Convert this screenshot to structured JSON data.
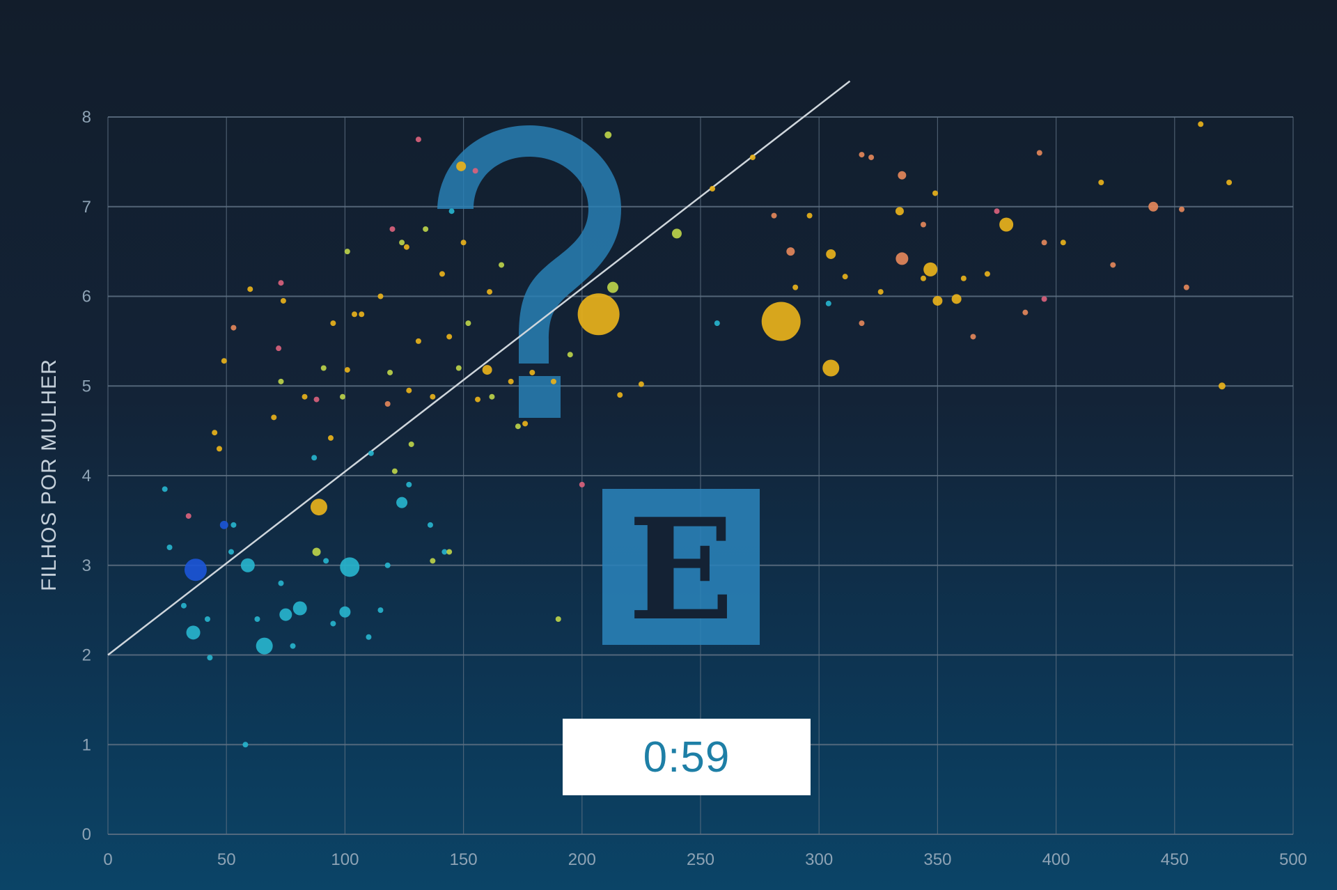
{
  "timer": {
    "value": "0:59"
  },
  "colors": {
    "grid": "#5f7183",
    "trend_line": "#cfd6dc",
    "logo_blue": "#2a82b8",
    "yellow": "#e8b21b",
    "orange": "#e3875a",
    "pink": "#d9627c",
    "teal": "#27b3cc",
    "blue": "#1b55d6",
    "lime": "#bcd24a"
  },
  "logo": {
    "glyphs": "?E",
    "icon": "question-mark-e-logo"
  },
  "chart_data": {
    "type": "scatter",
    "title": "",
    "xlabel": "",
    "ylabel": "FILHOS POR MULHER",
    "xlim": [
      0,
      500
    ],
    "ylim": [
      0,
      8
    ],
    "x_ticks": [
      "0",
      "50",
      "100",
      "150",
      "200",
      "250",
      "300",
      "350",
      "400",
      "450",
      "500"
    ],
    "y_ticks": [
      "0",
      "1",
      "2",
      "3",
      "4",
      "5",
      "6",
      "7",
      "8"
    ],
    "grid": true,
    "trend_line": {
      "x": [
        0,
        313
      ],
      "y": [
        2.0,
        8.4
      ]
    },
    "points": [
      {
        "x": 37,
        "y": 2.95,
        "r": 16,
        "c": "blue"
      },
      {
        "x": 49,
        "y": 3.45,
        "r": 6,
        "c": "blue"
      },
      {
        "x": 59,
        "y": 3.0,
        "r": 10,
        "c": "teal"
      },
      {
        "x": 66,
        "y": 2.1,
        "r": 12,
        "c": "teal"
      },
      {
        "x": 36,
        "y": 2.25,
        "r": 10,
        "c": "teal"
      },
      {
        "x": 75,
        "y": 2.45,
        "r": 9,
        "c": "teal"
      },
      {
        "x": 81,
        "y": 2.52,
        "r": 10,
        "c": "teal"
      },
      {
        "x": 102,
        "y": 2.98,
        "r": 14,
        "c": "teal"
      },
      {
        "x": 100,
        "y": 2.48,
        "r": 8,
        "c": "teal"
      },
      {
        "x": 124,
        "y": 3.7,
        "r": 8,
        "c": "teal"
      },
      {
        "x": 88,
        "y": 3.15,
        "r": 6,
        "c": "lime"
      },
      {
        "x": 24,
        "y": 3.85,
        "r": 4,
        "c": "teal"
      },
      {
        "x": 26,
        "y": 3.2,
        "r": 4,
        "c": "teal"
      },
      {
        "x": 32,
        "y": 2.55,
        "r": 4,
        "c": "teal"
      },
      {
        "x": 42,
        "y": 2.4,
        "r": 4,
        "c": "teal"
      },
      {
        "x": 43,
        "y": 1.97,
        "r": 4,
        "c": "teal"
      },
      {
        "x": 52,
        "y": 3.15,
        "r": 4,
        "c": "teal"
      },
      {
        "x": 53,
        "y": 3.45,
        "r": 4,
        "c": "teal"
      },
      {
        "x": 58,
        "y": 1.0,
        "r": 4,
        "c": "teal"
      },
      {
        "x": 63,
        "y": 2.4,
        "r": 4,
        "c": "teal"
      },
      {
        "x": 73,
        "y": 2.8,
        "r": 4,
        "c": "teal"
      },
      {
        "x": 78,
        "y": 2.1,
        "r": 4,
        "c": "teal"
      },
      {
        "x": 92,
        "y": 3.05,
        "r": 4,
        "c": "teal"
      },
      {
        "x": 95,
        "y": 2.35,
        "r": 4,
        "c": "teal"
      },
      {
        "x": 110,
        "y": 2.2,
        "r": 4,
        "c": "teal"
      },
      {
        "x": 115,
        "y": 2.5,
        "r": 4,
        "c": "teal"
      },
      {
        "x": 118,
        "y": 3.0,
        "r": 4,
        "c": "teal"
      },
      {
        "x": 127,
        "y": 3.9,
        "r": 4,
        "c": "teal"
      },
      {
        "x": 136,
        "y": 3.45,
        "r": 4,
        "c": "teal"
      },
      {
        "x": 142,
        "y": 3.15,
        "r": 4,
        "c": "teal"
      },
      {
        "x": 111,
        "y": 4.25,
        "r": 4,
        "c": "teal"
      },
      {
        "x": 87,
        "y": 4.2,
        "r": 4,
        "c": "teal"
      },
      {
        "x": 145,
        "y": 6.95,
        "r": 4,
        "c": "teal"
      },
      {
        "x": 137,
        "y": 3.05,
        "r": 4,
        "c": "lime"
      },
      {
        "x": 144,
        "y": 3.15,
        "r": 4,
        "c": "lime"
      },
      {
        "x": 190,
        "y": 2.4,
        "r": 4,
        "c": "lime"
      },
      {
        "x": 89,
        "y": 3.65,
        "r": 12,
        "c": "yellow"
      },
      {
        "x": 207,
        "y": 5.8,
        "r": 30,
        "c": "yellow"
      },
      {
        "x": 284,
        "y": 5.72,
        "r": 28,
        "c": "yellow"
      },
      {
        "x": 305,
        "y": 5.2,
        "r": 12,
        "c": "yellow"
      },
      {
        "x": 160,
        "y": 5.18,
        "r": 7,
        "c": "yellow"
      },
      {
        "x": 149,
        "y": 7.45,
        "r": 7,
        "c": "yellow"
      },
      {
        "x": 347,
        "y": 6.3,
        "r": 10,
        "c": "yellow"
      },
      {
        "x": 379,
        "y": 6.8,
        "r": 10,
        "c": "yellow"
      },
      {
        "x": 350,
        "y": 5.95,
        "r": 7,
        "c": "yellow"
      },
      {
        "x": 358,
        "y": 5.97,
        "r": 7,
        "c": "yellow"
      },
      {
        "x": 305,
        "y": 6.47,
        "r": 7,
        "c": "yellow"
      },
      {
        "x": 334,
        "y": 6.95,
        "r": 6,
        "c": "yellow"
      },
      {
        "x": 470,
        "y": 5.0,
        "r": 5,
        "c": "yellow"
      },
      {
        "x": 461,
        "y": 7.92,
        "r": 4,
        "c": "yellow"
      },
      {
        "x": 473,
        "y": 7.27,
        "r": 4,
        "c": "yellow"
      },
      {
        "x": 419,
        "y": 7.27,
        "r": 4,
        "c": "yellow"
      },
      {
        "x": 335,
        "y": 6.42,
        "r": 9,
        "c": "orange"
      },
      {
        "x": 335,
        "y": 7.35,
        "r": 6,
        "c": "orange"
      },
      {
        "x": 441,
        "y": 7.0,
        "r": 7,
        "c": "orange"
      },
      {
        "x": 453,
        "y": 6.97,
        "r": 4,
        "c": "orange"
      },
      {
        "x": 455,
        "y": 6.1,
        "r": 4,
        "c": "orange"
      },
      {
        "x": 424,
        "y": 6.35,
        "r": 4,
        "c": "orange"
      },
      {
        "x": 393,
        "y": 7.6,
        "r": 4,
        "c": "orange"
      },
      {
        "x": 395,
        "y": 6.6,
        "r": 4,
        "c": "orange"
      },
      {
        "x": 387,
        "y": 5.82,
        "r": 4,
        "c": "orange"
      },
      {
        "x": 365,
        "y": 5.55,
        "r": 4,
        "c": "orange"
      },
      {
        "x": 344,
        "y": 6.8,
        "r": 4,
        "c": "orange"
      },
      {
        "x": 318,
        "y": 5.7,
        "r": 4,
        "c": "orange"
      },
      {
        "x": 288,
        "y": 6.5,
        "r": 6,
        "c": "orange"
      },
      {
        "x": 318,
        "y": 7.58,
        "r": 4,
        "c": "orange"
      },
      {
        "x": 322,
        "y": 7.55,
        "r": 4,
        "c": "orange"
      },
      {
        "x": 281,
        "y": 6.9,
        "r": 4,
        "c": "orange"
      },
      {
        "x": 53,
        "y": 5.65,
        "r": 4,
        "c": "orange"
      },
      {
        "x": 118,
        "y": 4.8,
        "r": 4,
        "c": "orange"
      },
      {
        "x": 88,
        "y": 4.85,
        "r": 4,
        "c": "pink"
      },
      {
        "x": 73,
        "y": 6.15,
        "r": 4,
        "c": "pink"
      },
      {
        "x": 131,
        "y": 7.75,
        "r": 4,
        "c": "pink"
      },
      {
        "x": 120,
        "y": 6.75,
        "r": 4,
        "c": "pink"
      },
      {
        "x": 155,
        "y": 7.4,
        "r": 4,
        "c": "pink"
      },
      {
        "x": 72,
        "y": 5.42,
        "r": 4,
        "c": "pink"
      },
      {
        "x": 34,
        "y": 3.55,
        "r": 4,
        "c": "pink"
      },
      {
        "x": 200,
        "y": 3.9,
        "r": 4,
        "c": "pink"
      },
      {
        "x": 375,
        "y": 6.95,
        "r": 4,
        "c": "pink"
      },
      {
        "x": 395,
        "y": 5.97,
        "r": 4,
        "c": "pink"
      },
      {
        "x": 47,
        "y": 4.3,
        "r": 4,
        "c": "yellow"
      },
      {
        "x": 45,
        "y": 4.48,
        "r": 4,
        "c": "yellow"
      },
      {
        "x": 49,
        "y": 5.28,
        "r": 4,
        "c": "yellow"
      },
      {
        "x": 60,
        "y": 6.08,
        "r": 4,
        "c": "yellow"
      },
      {
        "x": 70,
        "y": 4.65,
        "r": 4,
        "c": "yellow"
      },
      {
        "x": 74,
        "y": 5.95,
        "r": 4,
        "c": "yellow"
      },
      {
        "x": 73,
        "y": 5.05,
        "r": 4,
        "c": "lime"
      },
      {
        "x": 83,
        "y": 4.88,
        "r": 4,
        "c": "yellow"
      },
      {
        "x": 94,
        "y": 4.42,
        "r": 4,
        "c": "yellow"
      },
      {
        "x": 95,
        "y": 5.7,
        "r": 4,
        "c": "yellow"
      },
      {
        "x": 91,
        "y": 5.2,
        "r": 4,
        "c": "lime"
      },
      {
        "x": 99,
        "y": 4.88,
        "r": 4,
        "c": "lime"
      },
      {
        "x": 101,
        "y": 5.18,
        "r": 4,
        "c": "yellow"
      },
      {
        "x": 101,
        "y": 6.5,
        "r": 4,
        "c": "lime"
      },
      {
        "x": 104,
        "y": 5.8,
        "r": 4,
        "c": "yellow"
      },
      {
        "x": 107,
        "y": 5.8,
        "r": 4,
        "c": "yellow"
      },
      {
        "x": 115,
        "y": 6.0,
        "r": 4,
        "c": "yellow"
      },
      {
        "x": 119,
        "y": 5.15,
        "r": 4,
        "c": "lime"
      },
      {
        "x": 121,
        "y": 4.05,
        "r": 4,
        "c": "lime"
      },
      {
        "x": 124,
        "y": 6.6,
        "r": 4,
        "c": "lime"
      },
      {
        "x": 126,
        "y": 6.55,
        "r": 4,
        "c": "yellow"
      },
      {
        "x": 127,
        "y": 4.95,
        "r": 4,
        "c": "yellow"
      },
      {
        "x": 128,
        "y": 4.35,
        "r": 4,
        "c": "lime"
      },
      {
        "x": 131,
        "y": 5.5,
        "r": 4,
        "c": "yellow"
      },
      {
        "x": 134,
        "y": 6.75,
        "r": 4,
        "c": "lime"
      },
      {
        "x": 137,
        "y": 4.88,
        "r": 4,
        "c": "yellow"
      },
      {
        "x": 141,
        "y": 6.25,
        "r": 4,
        "c": "yellow"
      },
      {
        "x": 144,
        "y": 5.55,
        "r": 4,
        "c": "yellow"
      },
      {
        "x": 148,
        "y": 5.2,
        "r": 4,
        "c": "lime"
      },
      {
        "x": 150,
        "y": 6.6,
        "r": 4,
        "c": "yellow"
      },
      {
        "x": 152,
        "y": 5.7,
        "r": 4,
        "c": "lime"
      },
      {
        "x": 156,
        "y": 4.85,
        "r": 4,
        "c": "yellow"
      },
      {
        "x": 161,
        "y": 6.05,
        "r": 4,
        "c": "yellow"
      },
      {
        "x": 162,
        "y": 4.88,
        "r": 4,
        "c": "lime"
      },
      {
        "x": 166,
        "y": 6.35,
        "r": 4,
        "c": "lime"
      },
      {
        "x": 170,
        "y": 5.05,
        "r": 4,
        "c": "yellow"
      },
      {
        "x": 173,
        "y": 4.55,
        "r": 4,
        "c": "lime"
      },
      {
        "x": 176,
        "y": 4.58,
        "r": 4,
        "c": "yellow"
      },
      {
        "x": 179,
        "y": 5.15,
        "r": 4,
        "c": "yellow"
      },
      {
        "x": 188,
        "y": 5.05,
        "r": 4,
        "c": "yellow"
      },
      {
        "x": 195,
        "y": 5.35,
        "r": 4,
        "c": "lime"
      },
      {
        "x": 211,
        "y": 7.8,
        "r": 5,
        "c": "lime"
      },
      {
        "x": 213,
        "y": 6.1,
        "r": 8,
        "c": "lime"
      },
      {
        "x": 216,
        "y": 4.9,
        "r": 4,
        "c": "yellow"
      },
      {
        "x": 225,
        "y": 5.02,
        "r": 4,
        "c": "yellow"
      },
      {
        "x": 240,
        "y": 6.7,
        "r": 7,
        "c": "lime"
      },
      {
        "x": 255,
        "y": 7.2,
        "r": 4,
        "c": "yellow"
      },
      {
        "x": 272,
        "y": 7.55,
        "r": 4,
        "c": "yellow"
      },
      {
        "x": 290,
        "y": 6.1,
        "r": 4,
        "c": "yellow"
      },
      {
        "x": 296,
        "y": 6.9,
        "r": 4,
        "c": "yellow"
      },
      {
        "x": 311,
        "y": 6.22,
        "r": 4,
        "c": "yellow"
      },
      {
        "x": 326,
        "y": 6.05,
        "r": 4,
        "c": "yellow"
      },
      {
        "x": 344,
        "y": 6.2,
        "r": 4,
        "c": "yellow"
      },
      {
        "x": 361,
        "y": 6.2,
        "r": 4,
        "c": "yellow"
      },
      {
        "x": 371,
        "y": 6.25,
        "r": 4,
        "c": "yellow"
      },
      {
        "x": 349,
        "y": 7.15,
        "r": 4,
        "c": "yellow"
      },
      {
        "x": 403,
        "y": 6.6,
        "r": 4,
        "c": "yellow"
      },
      {
        "x": 304,
        "y": 5.92,
        "r": 4,
        "c": "teal"
      },
      {
        "x": 257,
        "y": 5.7,
        "r": 4,
        "c": "teal"
      }
    ]
  }
}
